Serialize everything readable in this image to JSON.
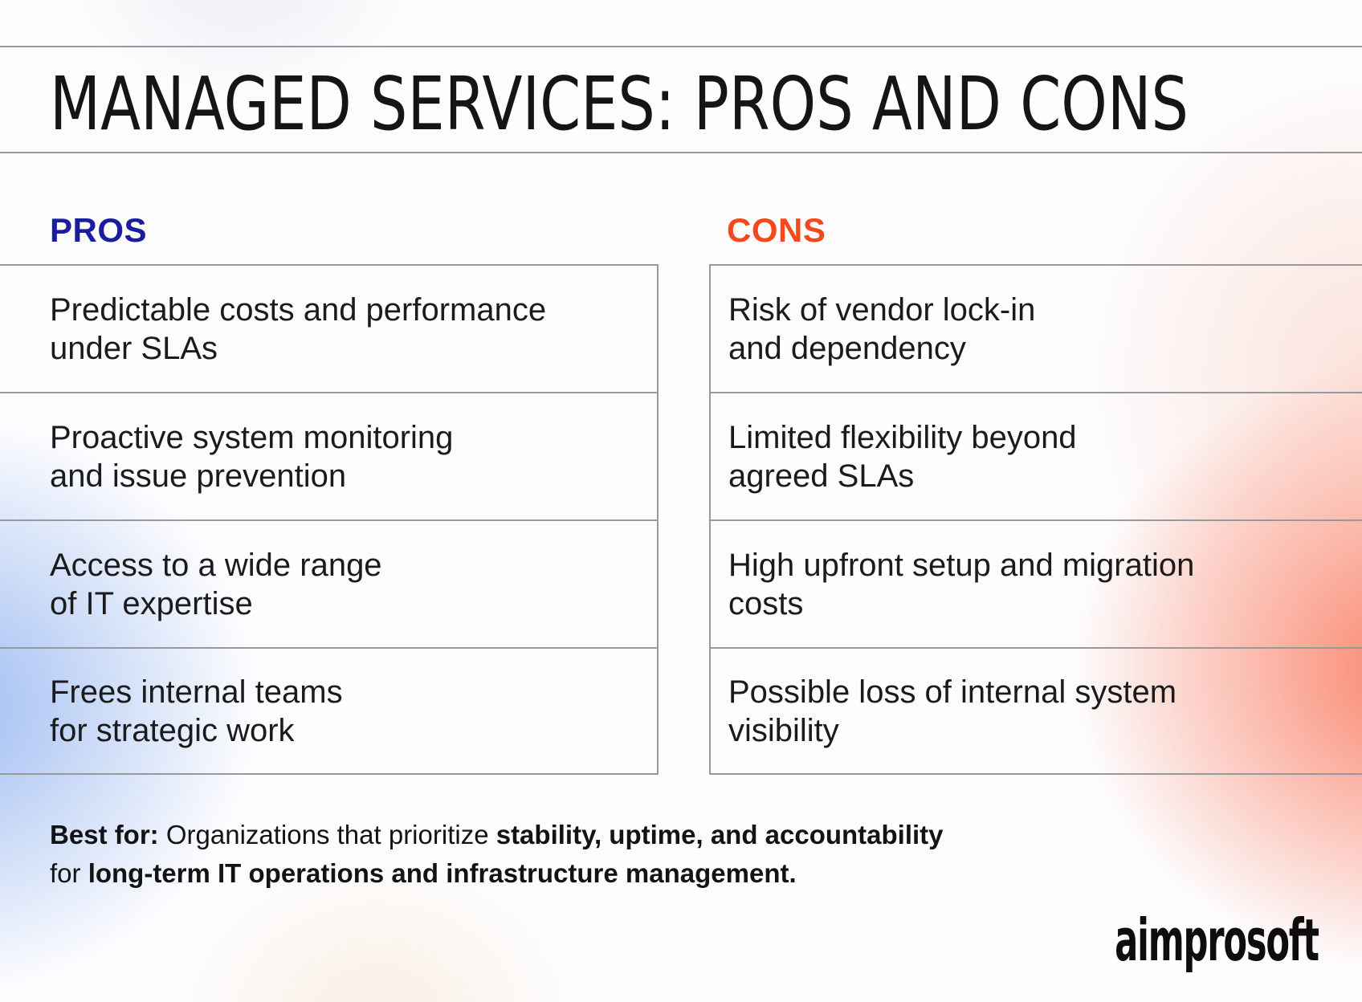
{
  "title": "MANAGED SERVICES: PROS AND CONS",
  "colors": {
    "pros_accent": "#1a1e9e",
    "cons_accent": "#f4481e",
    "grid_line": "#98999c",
    "text": "#1b1b1d",
    "background_blue_glow": "#a8c3f0",
    "background_red_glow": "#fa9480"
  },
  "pros": {
    "heading": "PROS",
    "items": [
      "Predictable costs and performance\nunder SLAs",
      "Proactive system monitoring\nand issue prevention",
      "Access to a wide range\nof IT expertise",
      "Frees internal teams\nfor strategic work"
    ]
  },
  "cons": {
    "heading": "CONS",
    "items": [
      "Risk of vendor lock-in\nand dependency",
      "Limited flexibility beyond\nagreed SLAs",
      "High upfront setup and migration\ncosts",
      "Possible loss of internal system\nvisibility"
    ]
  },
  "footer": {
    "segments": [
      {
        "text": "Best for:",
        "bold": true
      },
      {
        "text": " Organizations that prioritize ",
        "bold": false
      },
      {
        "text": "stability, uptime, and accountability",
        "bold": true
      },
      {
        "text": "for ",
        "bold": false
      },
      {
        "text": "long-term IT operations and infrastructure management.",
        "bold": true
      }
    ]
  },
  "logo": "aimprosoft"
}
